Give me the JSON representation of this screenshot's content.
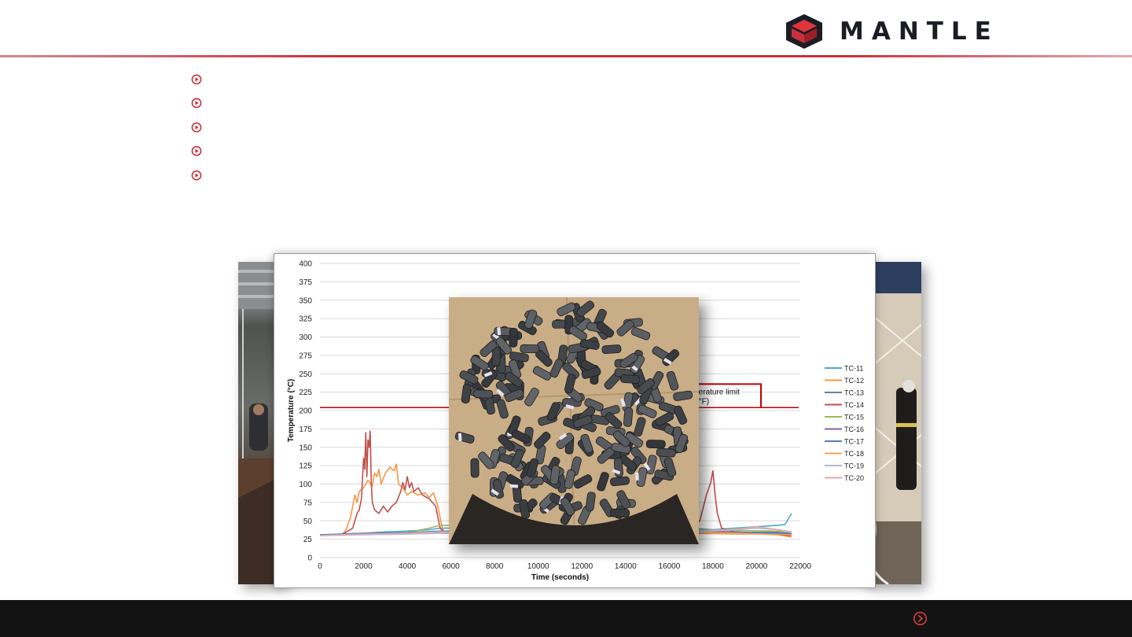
{
  "header": {
    "logo_text": "MANTLE",
    "accent_color": "#c9303b"
  },
  "bullets": {
    "count": 5,
    "icon": "circle-chevron-right-icon"
  },
  "chart_data": {
    "type": "line",
    "title": "",
    "xlabel": "Time (seconds)",
    "ylabel": "Temperature (°C)",
    "xlim": [
      0,
      22000
    ],
    "ylim": [
      0,
      400
    ],
    "x_ticks": [
      0,
      2000,
      4000,
      6000,
      8000,
      10000,
      12000,
      14000,
      16000,
      18000,
      20000,
      22000
    ],
    "y_ticks": [
      0,
      25,
      50,
      75,
      100,
      125,
      150,
      175,
      200,
      225,
      250,
      275,
      300,
      325,
      350,
      375,
      400
    ],
    "grid": true,
    "legend_position": "right",
    "limit_line": {
      "y": 204,
      "label_line1": "perature limit",
      "label_line2": "0°F)",
      "color": "#c00000"
    },
    "series": [
      {
        "name": "TC-11",
        "color": "#4bacc6",
        "points": [
          [
            0,
            31
          ],
          [
            1000,
            32
          ],
          [
            2000,
            33
          ],
          [
            3000,
            35
          ],
          [
            4000,
            36
          ],
          [
            5000,
            38
          ],
          [
            5500,
            40
          ],
          [
            17000,
            40
          ],
          [
            18000,
            38
          ],
          [
            19000,
            40
          ],
          [
            20000,
            42
          ],
          [
            21000,
            44
          ],
          [
            21300,
            45
          ],
          [
            21600,
            60
          ]
        ]
      },
      {
        "name": "TC-12",
        "color": "#f79646",
        "points": [
          [
            0,
            30
          ],
          [
            1000,
            31
          ],
          [
            1200,
            38
          ],
          [
            1400,
            55
          ],
          [
            1500,
            70
          ],
          [
            1600,
            85
          ],
          [
            1700,
            75
          ],
          [
            1800,
            90
          ],
          [
            2000,
            95
          ],
          [
            2200,
            105
          ],
          [
            2400,
            97
          ],
          [
            2500,
            115
          ],
          [
            2600,
            110
          ],
          [
            2700,
            120
          ],
          [
            2800,
            100
          ],
          [
            3000,
            115
          ],
          [
            3200,
            123
          ],
          [
            3400,
            118
          ],
          [
            3500,
            127
          ],
          [
            3600,
            100
          ],
          [
            3800,
            95
          ],
          [
            4000,
            85
          ],
          [
            4200,
            90
          ],
          [
            4500,
            85
          ],
          [
            4800,
            88
          ],
          [
            5000,
            82
          ],
          [
            5200,
            88
          ],
          [
            5400,
            70
          ],
          [
            5600,
            40
          ],
          [
            5700,
            34
          ],
          [
            17000,
            33
          ],
          [
            19000,
            32
          ],
          [
            20000,
            32
          ],
          [
            21000,
            31
          ],
          [
            21600,
            28
          ]
        ]
      },
      {
        "name": "TC-13",
        "color": "#5f86a4",
        "points": [
          [
            0,
            30
          ],
          [
            2000,
            32
          ],
          [
            4000,
            33
          ],
          [
            5500,
            34
          ],
          [
            17000,
            33
          ],
          [
            19000,
            34
          ],
          [
            21000,
            35
          ],
          [
            21600,
            32
          ]
        ]
      },
      {
        "name": "TC-14",
        "color": "#c0504d",
        "points": [
          [
            0,
            30
          ],
          [
            1000,
            31
          ],
          [
            1500,
            40
          ],
          [
            1700,
            60
          ],
          [
            1800,
            65
          ],
          [
            1900,
            80
          ],
          [
            2000,
            135
          ],
          [
            2050,
            120
          ],
          [
            2100,
            170
          ],
          [
            2150,
            110
          ],
          [
            2200,
            160
          ],
          [
            2250,
            150
          ],
          [
            2300,
            172
          ],
          [
            2350,
            100
          ],
          [
            2400,
            75
          ],
          [
            2500,
            65
          ],
          [
            2700,
            60
          ],
          [
            2900,
            70
          ],
          [
            3100,
            62
          ],
          [
            3300,
            70
          ],
          [
            3500,
            75
          ],
          [
            3700,
            90
          ],
          [
            3800,
            102
          ],
          [
            3900,
            92
          ],
          [
            4000,
            110
          ],
          [
            4100,
            95
          ],
          [
            4200,
            102
          ],
          [
            4300,
            90
          ],
          [
            4500,
            95
          ],
          [
            4700,
            85
          ],
          [
            5000,
            80
          ],
          [
            5300,
            70
          ],
          [
            5500,
            40
          ],
          [
            5700,
            35
          ],
          [
            17000,
            38
          ],
          [
            17400,
            50
          ],
          [
            17700,
            85
          ],
          [
            17900,
            102
          ],
          [
            18000,
            118
          ],
          [
            18100,
            85
          ],
          [
            18200,
            60
          ],
          [
            18400,
            40
          ],
          [
            19000,
            35
          ],
          [
            21600,
            30
          ]
        ]
      },
      {
        "name": "TC-15",
        "color": "#9bbb59",
        "points": [
          [
            0,
            31
          ],
          [
            2000,
            32
          ],
          [
            4000,
            34
          ],
          [
            5000,
            40
          ],
          [
            5500,
            44
          ],
          [
            17000,
            38
          ],
          [
            19000,
            37
          ],
          [
            21000,
            36
          ],
          [
            21600,
            33
          ]
        ]
      },
      {
        "name": "TC-16",
        "color": "#8064a2",
        "points": [
          [
            0,
            30
          ],
          [
            2000,
            32
          ],
          [
            4000,
            33
          ],
          [
            5500,
            35
          ],
          [
            17000,
            36
          ],
          [
            19000,
            35
          ],
          [
            21600,
            32
          ]
        ]
      },
      {
        "name": "TC-17",
        "color": "#4f81bd",
        "points": [
          [
            0,
            31
          ],
          [
            2000,
            33
          ],
          [
            4000,
            34
          ],
          [
            5500,
            36
          ],
          [
            17000,
            35
          ],
          [
            19000,
            34
          ],
          [
            21600,
            33
          ]
        ]
      },
      {
        "name": "TC-18",
        "color": "#f6a35a",
        "points": [
          [
            0,
            30
          ],
          [
            2000,
            31
          ],
          [
            4000,
            32
          ],
          [
            5500,
            33
          ],
          [
            17000,
            34
          ],
          [
            19000,
            33
          ],
          [
            21600,
            31
          ]
        ]
      },
      {
        "name": "TC-19",
        "color": "#b3b6da",
        "points": [
          [
            0,
            30
          ],
          [
            2000,
            31
          ],
          [
            4000,
            32
          ],
          [
            5500,
            33
          ],
          [
            17000,
            36
          ],
          [
            19000,
            38
          ],
          [
            20000,
            40
          ],
          [
            21000,
            38
          ],
          [
            21600,
            35
          ]
        ]
      },
      {
        "name": "TC-20",
        "color": "#e6a8a8",
        "points": [
          [
            0,
            30
          ],
          [
            2000,
            32
          ],
          [
            4000,
            33
          ],
          [
            5500,
            35
          ],
          [
            17000,
            34
          ],
          [
            19000,
            38
          ],
          [
            20000,
            42
          ],
          [
            21000,
            38
          ],
          [
            21600,
            34
          ]
        ]
      }
    ]
  },
  "footer": {
    "icon": "circle-chevron-right-icon"
  }
}
